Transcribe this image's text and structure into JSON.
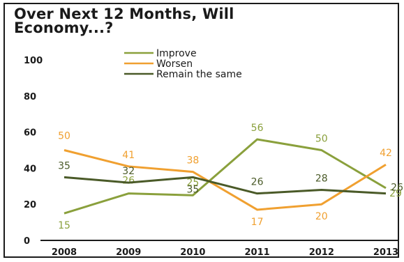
{
  "chart_data": {
    "type": "line",
    "title_line1": "Over Next 12 Months, Will",
    "title_line2": "Economy...?",
    "x": [
      "2008",
      "2009",
      "2010",
      "2011",
      "2012",
      "2013"
    ],
    "ylim": [
      0,
      100
    ],
    "yticks": [
      "0",
      "20",
      "40",
      "60",
      "80",
      "100"
    ],
    "grid": false,
    "legend_position": "top-center",
    "series": [
      {
        "name": "Improve",
        "color": "#8aa03c",
        "values": [
          15,
          26,
          25,
          56,
          50,
          29
        ],
        "labels": [
          "15",
          "26",
          "25",
          "56",
          "50",
          "29"
        ]
      },
      {
        "name": "Worsen",
        "color": "#f0a030",
        "values": [
          50,
          41,
          38,
          17,
          20,
          42
        ],
        "labels": [
          "50",
          "41",
          "38",
          "17",
          "20",
          "42"
        ]
      },
      {
        "name": "Remain the same",
        "color": "#4a5a28",
        "values": [
          35,
          32,
          35,
          26,
          28,
          26
        ],
        "labels": [
          "35",
          "32",
          "35",
          "26",
          "28",
          "26"
        ]
      }
    ]
  }
}
